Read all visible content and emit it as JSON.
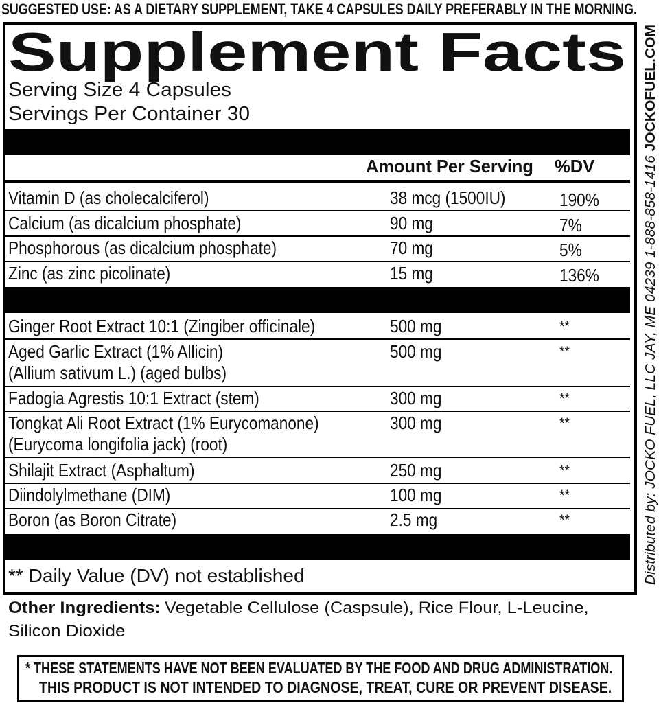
{
  "top_note": "SUGGESTED USE: AS A DIETARY SUPPLEMENT, TAKE 4 CAPSULES  DAILY PREFERABLY IN THE MORNING.",
  "panel": {
    "title": "Supplement Facts",
    "serving_size": "Serving Size 4 Capsules",
    "servings_per_container": "Servings Per Container 30",
    "header": {
      "amount": "Amount Per Serving",
      "dv": "%DV"
    },
    "vitamins": [
      {
        "name": [
          "Vitamin D (as cholecalciferol)"
        ],
        "amount": "38 mcg (1500IU)",
        "dv": "190%"
      },
      {
        "name": [
          "Calcium (as dicalcium phosphate)"
        ],
        "amount": "90 mg",
        "dv": "7%"
      },
      {
        "name": [
          "Phosphorous (as dicalcium phosphate)"
        ],
        "amount": "70 mg",
        "dv": "5%"
      },
      {
        "name": [
          "Zinc (as zinc picolinate)"
        ],
        "amount": "15 mg",
        "dv": "136%"
      }
    ],
    "blend": [
      {
        "name": [
          "Ginger Root Extract 10:1 (Zingiber officinale)"
        ],
        "amount": "500 mg",
        "dv": "**"
      },
      {
        "name": [
          "Aged Garlic Extract (1% Allicin)",
          "(Allium sativum L.) (aged bulbs)"
        ],
        "amount": "500 mg",
        "dv": "**"
      },
      {
        "name": [
          "Fadogia Agrestis 10:1 Extract (stem)"
        ],
        "amount": "300 mg",
        "dv": "**"
      },
      {
        "name": [
          "Tongkat Ali Root Extract (1% Eurycomanone)",
          "(Eurycoma longifolia jack) (root)"
        ],
        "amount": "300 mg",
        "dv": "**"
      },
      {
        "name": [
          "Shilajit Extract (Asphaltum)"
        ],
        "amount": "250 mg",
        "dv": "**"
      },
      {
        "name": [
          "Diindolylmethane (DIM)"
        ],
        "amount": "100 mg",
        "dv": "**"
      },
      {
        "name": [
          "Boron (as Boron Citrate)"
        ],
        "amount": "2.5 mg",
        "dv": "**"
      }
    ],
    "footnote": "** Daily Value (DV) not established"
  },
  "other_ingredients": {
    "label": "Other Ingredients:",
    "lines": [
      "Vegetable Cellulose (Caspsule), Rice Flour, L-Leucine,",
      "Silicon Dioxide"
    ]
  },
  "disclaimer": [
    "* THESE STATEMENTS HAVE NOT BEEN EVALUATED BY THE FOOD AND DRUG ADMINISTRATION.",
    "THIS PRODUCT IS NOT INTENDED TO DIAGNOSE, TREAT, CURE OR PREVENT DISEASE."
  ],
  "side_text": {
    "distributor": "Distributed by: JOCKO FUEL, LLC JAY, ME 04239 1-888-858-1416",
    "website": "JOCKOFUEL.COM"
  }
}
